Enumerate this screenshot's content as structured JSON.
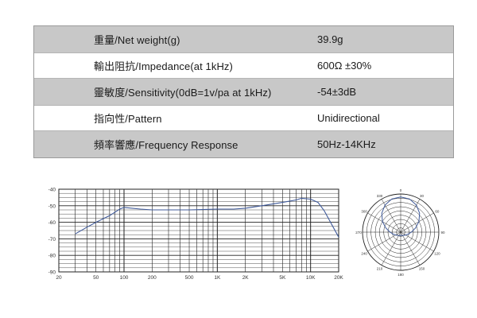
{
  "specs": [
    {
      "label": "重量/Net weight(g)",
      "value": "39.9g"
    },
    {
      "label": "輸出阻抗/Impedance(at 1kHz)",
      "value": "600Ω ±30%"
    },
    {
      "label": "靈敏度/Sensitivity(0dB=1v/pa at 1kHz)",
      "value": "-54±3dB"
    },
    {
      "label": "指向性/Pattern",
      "value": "Unidirectional"
    },
    {
      "label": "頻率響應/Frequency Response",
      "value": "50Hz-14KHz"
    }
  ],
  "colors": {
    "row_shade": "#c8c8c8",
    "curve": "#3f5a9a",
    "grid": "#222222"
  },
  "chart_data": [
    {
      "type": "line",
      "x_scale": "log",
      "xlim": [
        20,
        20000
      ],
      "ylim": [
        -90,
        -40
      ],
      "x_ticks": [
        20,
        50,
        100,
        200,
        500,
        1000,
        2000,
        5000,
        10000,
        20000
      ],
      "x_tick_labels": [
        "20",
        "50",
        "100",
        "200",
        "500",
        "1K",
        "2K",
        "5K",
        "10K",
        "20K"
      ],
      "y_ticks": [
        -40,
        -50,
        -60,
        -70,
        -80,
        -90
      ],
      "y_tick_labels": [
        "-40",
        "-50",
        "-60",
        "-70",
        "-80",
        "-90"
      ],
      "series": [
        {
          "x": [
            30,
            40,
            50,
            70,
            90,
            100,
            150,
            200,
            500,
            1000,
            1500,
            2000,
            3000,
            5000,
            7000,
            8000,
            10000,
            12000,
            14000,
            20000
          ],
          "y": [
            -67,
            -63,
            -60,
            -56,
            -52,
            -51,
            -52,
            -52.5,
            -52.5,
            -52,
            -52,
            -51.5,
            -50,
            -48,
            -46.5,
            -45.5,
            -46,
            -48,
            -53,
            -69
          ]
        }
      ]
    },
    {
      "type": "polar",
      "angle_labels": [
        "0",
        "30",
        "60",
        "90",
        "120",
        "150",
        "180",
        "210",
        "240",
        "270",
        "300",
        "330"
      ],
      "ring_count": 9,
      "series": [
        {
          "angles_deg": [
            0,
            15,
            30,
            45,
            60,
            75,
            90,
            105,
            120,
            135,
            150,
            165,
            180,
            195,
            210,
            225,
            240,
            255,
            270,
            285,
            300,
            315,
            330,
            345,
            360
          ],
          "radius_fraction": [
            0.92,
            0.9,
            0.82,
            0.7,
            0.55,
            0.4,
            0.28,
            0.2,
            0.15,
            0.12,
            0.1,
            0.09,
            0.08,
            0.09,
            0.1,
            0.12,
            0.15,
            0.2,
            0.28,
            0.4,
            0.55,
            0.7,
            0.82,
            0.9,
            0.92
          ]
        }
      ]
    }
  ]
}
